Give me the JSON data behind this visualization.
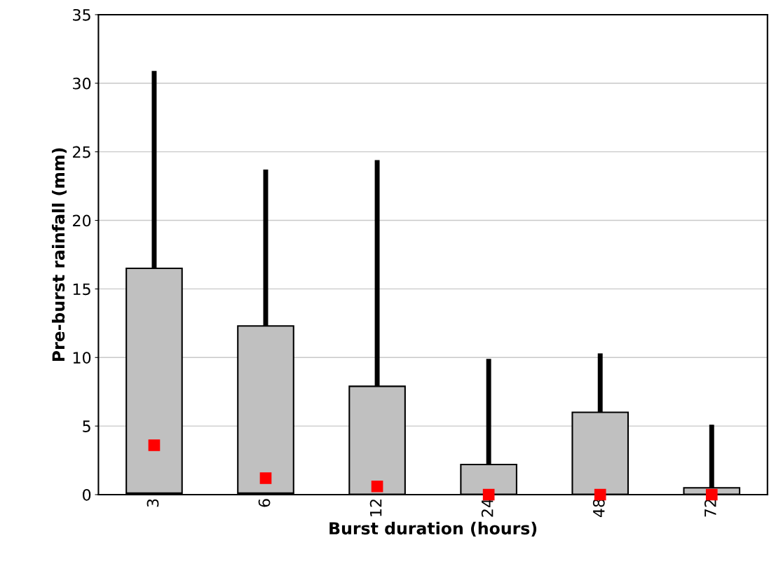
{
  "chart_data": {
    "type": "box",
    "xlabel": "Burst duration (hours)",
    "ylabel": "Pre-burst rainfall (mm)",
    "categories": [
      "3",
      "6",
      "12",
      "24",
      "48",
      "72"
    ],
    "boxes": [
      {
        "low": 0,
        "q1": 0,
        "median": 0.1,
        "q3": 16.5,
        "high": 30.9,
        "mean": 3.6
      },
      {
        "low": 0,
        "q1": 0,
        "median": 0.1,
        "q3": 12.3,
        "high": 23.7,
        "mean": 1.2
      },
      {
        "low": 0,
        "q1": 0,
        "median": 0,
        "q3": 7.9,
        "high": 24.4,
        "mean": 0.6
      },
      {
        "low": 0,
        "q1": 0,
        "median": 0,
        "q3": 2.2,
        "high": 9.9,
        "mean": 0
      },
      {
        "low": 0,
        "q1": 0,
        "median": 0,
        "q3": 6.0,
        "high": 10.3,
        "mean": 0
      },
      {
        "low": 0,
        "q1": 0,
        "median": 0,
        "q3": 0.5,
        "high": 5.1,
        "mean": 0
      }
    ],
    "color": "#c0c0c0",
    "marker": "square",
    "ylim": [
      0,
      35
    ],
    "yticks": [
      0,
      5,
      10,
      15,
      20,
      25,
      30,
      35
    ],
    "grid": "y",
    "legend": false
  }
}
